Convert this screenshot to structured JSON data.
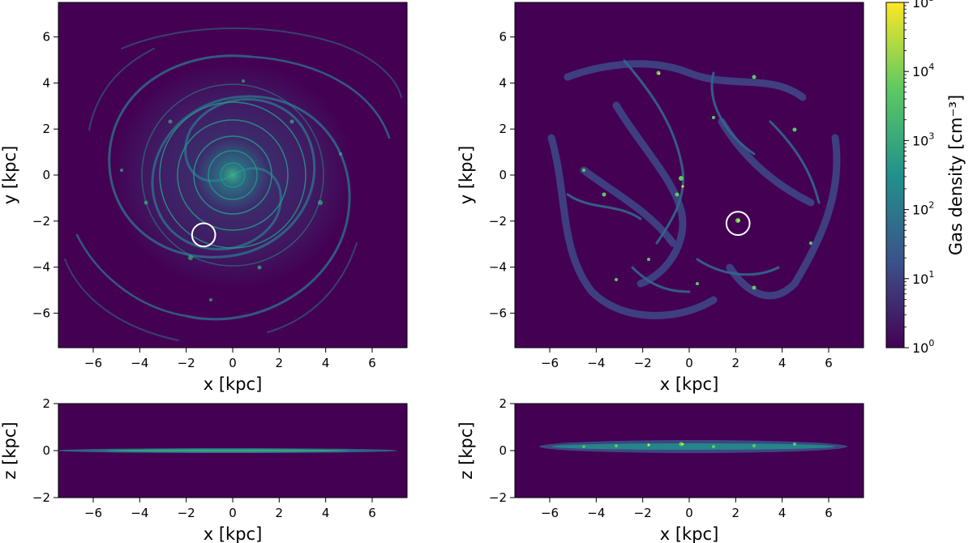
{
  "chart_data": [
    {
      "panel": "face-on-left",
      "type": "heatmap",
      "xlabel": "x [kpc]",
      "ylabel": "y [kpc]",
      "xlim": [
        -7.5,
        7.5
      ],
      "ylim": [
        -7.5,
        7.5
      ],
      "xticks": [
        -6,
        -4,
        -2,
        0,
        2,
        4,
        6
      ],
      "yticks": [
        -6,
        -4,
        -2,
        0,
        2,
        4,
        6
      ],
      "background_color": "#440154",
      "highlight_circle": {
        "x": -1.25,
        "y": -2.6,
        "r": 0.5
      },
      "grid": false
    },
    {
      "panel": "face-on-right",
      "type": "heatmap",
      "xlabel": "x [kpc]",
      "ylabel": "y [kpc]",
      "xlim": [
        -7.5,
        7.5
      ],
      "ylim": [
        -7.5,
        7.5
      ],
      "xticks": [
        -6,
        -4,
        -2,
        0,
        2,
        4,
        6
      ],
      "yticks": [
        -6,
        -4,
        -2,
        0,
        2,
        4,
        6
      ],
      "background_color": "#440154",
      "highlight_circle": {
        "x": 2.1,
        "y": -2.1,
        "r": 0.5
      },
      "grid": false
    },
    {
      "panel": "edge-on-left",
      "type": "heatmap",
      "xlabel": "x [kpc]",
      "ylabel": "z [kpc]",
      "xlim": [
        -7.5,
        7.5
      ],
      "ylim": [
        -2,
        2
      ],
      "xticks": [
        -6,
        -4,
        -2,
        0,
        2,
        4,
        6
      ],
      "yticks": [
        -2,
        0,
        2
      ],
      "background_color": "#440154",
      "grid": false
    },
    {
      "panel": "edge-on-right",
      "type": "heatmap",
      "xlabel": "x [kpc]",
      "ylabel": "z [kpc]",
      "xlim": [
        -7.5,
        7.5
      ],
      "ylim": [
        -2,
        2
      ],
      "xticks": [
        -6,
        -4,
        -2,
        0,
        2,
        4,
        6
      ],
      "yticks": [
        -2,
        0,
        2
      ],
      "background_color": "#440154",
      "grid": false
    },
    {
      "panel": "colorbar",
      "type": "colorbar",
      "label": "Gas density [cm⁻³]",
      "scale": "log",
      "range": [
        1,
        100000
      ],
      "tick_bases": [
        "10",
        "10",
        "10",
        "10",
        "10",
        "10"
      ],
      "tick_exponents": [
        "0",
        "1",
        "2",
        "3",
        "4",
        "5"
      ],
      "colors": [
        "#440154",
        "#3b528b",
        "#21918c",
        "#5ec962",
        "#fde725"
      ]
    }
  ]
}
